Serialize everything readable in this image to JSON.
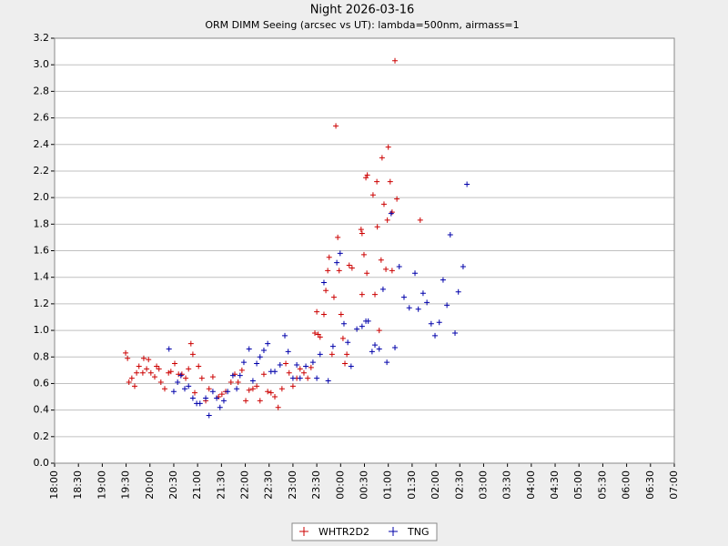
{
  "chart_data": {
    "type": "scatter",
    "title": "Night 2026-03-16",
    "subtitle": "ORM DIMM Seeing (arcsec vs UT): lambda=500nm, airmass=1",
    "xlim": [
      18,
      31
    ],
    "xticks": [
      {
        "value": 18,
        "label": "18:00"
      },
      {
        "value": 18.5,
        "label": "18:30"
      },
      {
        "value": 19,
        "label": "19:00"
      },
      {
        "value": 19.5,
        "label": "19:30"
      },
      {
        "value": 20,
        "label": "20:00"
      },
      {
        "value": 20.5,
        "label": "20:30"
      },
      {
        "value": 21,
        "label": "21:00"
      },
      {
        "value": 21.5,
        "label": "21:30"
      },
      {
        "value": 22,
        "label": "22:00"
      },
      {
        "value": 22.5,
        "label": "22:30"
      },
      {
        "value": 23,
        "label": "23:00"
      },
      {
        "value": 23.5,
        "label": "23:30"
      },
      {
        "value": 24,
        "label": "00:00"
      },
      {
        "value": 24.5,
        "label": "00:30"
      },
      {
        "value": 25,
        "label": "01:00"
      },
      {
        "value": 25.5,
        "label": "01:30"
      },
      {
        "value": 26,
        "label": "02:00"
      },
      {
        "value": 26.5,
        "label": "02:30"
      },
      {
        "value": 27,
        "label": "03:00"
      },
      {
        "value": 27.5,
        "label": "03:30"
      },
      {
        "value": 28,
        "label": "04:00"
      },
      {
        "value": 28.5,
        "label": "04:30"
      },
      {
        "value": 29,
        "label": "05:00"
      },
      {
        "value": 29.5,
        "label": "05:30"
      },
      {
        "value": 30,
        "label": "06:00"
      },
      {
        "value": 30.5,
        "label": "06:30"
      },
      {
        "value": 31,
        "label": "07:00"
      }
    ],
    "ylim": [
      0,
      3.2
    ],
    "yticks": [
      {
        "value": 0,
        "label": "0.0"
      },
      0.2,
      0.4,
      0.6,
      0.8,
      {
        "value": 1,
        "label": "1.0"
      },
      1.2,
      1.4,
      1.6,
      1.8,
      {
        "value": 2,
        "label": "2.0"
      },
      2.2,
      2.4,
      2.6,
      2.8,
      {
        "value": 3,
        "label": "3.0"
      },
      3.2
    ],
    "grid": true,
    "series": [
      {
        "name": "WHTR2D2",
        "color": "#cc0000",
        "x": [
          19.49,
          19.53,
          19.56,
          19.62,
          19.68,
          19.72,
          19.77,
          19.85,
          19.87,
          19.93,
          19.97,
          20.02,
          20.1,
          20.14,
          20.19,
          20.23,
          20.31,
          20.39,
          20.44,
          20.52,
          20.6,
          20.67,
          20.75,
          20.81,
          20.86,
          20.9,
          20.94,
          21.02,
          21.09,
          21.17,
          21.24,
          21.32,
          21.44,
          21.51,
          21.59,
          21.7,
          21.78,
          21.85,
          21.93,
          22.01,
          22.08,
          22.16,
          22.24,
          22.31,
          22.39,
          22.47,
          22.54,
          22.62,
          22.69,
          22.77,
          22.85,
          22.92,
          23.0,
          23.08,
          23.15,
          23.23,
          23.31,
          23.38,
          23.46,
          23.5,
          23.53,
          23.57,
          23.65,
          23.69,
          23.73,
          23.76,
          23.82,
          23.86,
          23.9,
          23.94,
          23.97,
          24.01,
          24.05,
          24.09,
          24.13,
          24.18,
          24.24,
          24.43,
          24.45,
          24.49,
          24.45,
          24.53,
          24.56,
          24.55,
          24.68,
          24.72,
          24.76,
          24.77,
          24.81,
          24.85,
          24.87,
          24.91,
          24.95,
          24.98,
          25.0,
          25.04,
          25.08,
          25.08,
          25.14,
          25.18,
          25.67
        ],
        "values": [
          0.83,
          0.79,
          0.61,
          0.64,
          0.58,
          0.68,
          0.73,
          0.68,
          0.79,
          0.71,
          0.78,
          0.68,
          0.65,
          0.73,
          0.71,
          0.61,
          0.56,
          0.68,
          0.69,
          0.75,
          0.67,
          0.67,
          0.64,
          0.71,
          0.9,
          0.82,
          0.53,
          0.73,
          0.64,
          0.47,
          0.56,
          0.65,
          0.5,
          0.52,
          0.54,
          0.61,
          0.67,
          0.61,
          0.7,
          0.47,
          0.55,
          0.56,
          0.58,
          0.47,
          0.67,
          0.54,
          0.53,
          0.5,
          0.42,
          0.56,
          0.75,
          0.68,
          0.58,
          0.64,
          0.71,
          0.68,
          0.64,
          0.72,
          0.98,
          1.14,
          0.97,
          0.95,
          1.12,
          1.3,
          1.45,
          1.55,
          0.82,
          1.25,
          2.54,
          1.7,
          1.45,
          1.12,
          0.94,
          0.75,
          0.82,
          1.49,
          1.47,
          1.76,
          1.73,
          1.57,
          1.27,
          2.15,
          2.17,
          1.43,
          2.02,
          1.27,
          2.12,
          1.78,
          1.0,
          1.53,
          2.3,
          1.95,
          1.46,
          1.83,
          2.38,
          2.12,
          1.45,
          1.89,
          3.03,
          1.99,
          1.83
        ]
      },
      {
        "name": "TNG",
        "color": "#0000aa",
        "x": [
          20.4,
          20.5,
          20.58,
          20.65,
          20.73,
          20.81,
          20.9,
          20.98,
          21.05,
          21.17,
          21.24,
          21.32,
          21.4,
          21.47,
          21.55,
          21.63,
          21.74,
          21.82,
          21.89,
          21.97,
          22.08,
          22.16,
          22.24,
          22.31,
          22.39,
          22.47,
          22.54,
          22.62,
          22.73,
          22.83,
          22.9,
          23.0,
          23.08,
          23.15,
          23.27,
          23.42,
          23.5,
          23.57,
          23.65,
          23.74,
          23.84,
          23.92,
          23.99,
          24.07,
          24.15,
          24.22,
          24.34,
          24.45,
          24.53,
          24.58,
          24.66,
          24.72,
          24.81,
          24.89,
          24.97,
          25.06,
          25.14,
          25.23,
          25.33,
          25.44,
          25.56,
          25.63,
          25.73,
          25.81,
          25.9,
          25.98,
          26.07,
          26.15,
          26.23,
          26.3,
          26.4,
          26.47,
          26.57,
          26.65
        ],
        "values": [
          0.86,
          0.54,
          0.61,
          0.66,
          0.56,
          0.58,
          0.49,
          0.45,
          0.45,
          0.49,
          0.36,
          0.54,
          0.49,
          0.42,
          0.47,
          0.54,
          0.66,
          0.56,
          0.66,
          0.76,
          0.86,
          0.62,
          0.75,
          0.8,
          0.85,
          0.9,
          0.69,
          0.69,
          0.74,
          0.96,
          0.84,
          0.64,
          0.74,
          0.64,
          0.73,
          0.76,
          0.64,
          0.82,
          1.36,
          0.62,
          0.88,
          1.51,
          1.58,
          1.05,
          0.91,
          0.73,
          1.01,
          1.03,
          1.07,
          1.07,
          0.84,
          0.89,
          0.86,
          1.31,
          0.76,
          1.88,
          0.87,
          1.48,
          1.25,
          1.17,
          1.43,
          1.16,
          1.28,
          1.21,
          1.05,
          0.96,
          1.06,
          1.38,
          1.19,
          1.72,
          0.98,
          1.29,
          1.48,
          2.1
        ]
      }
    ]
  }
}
